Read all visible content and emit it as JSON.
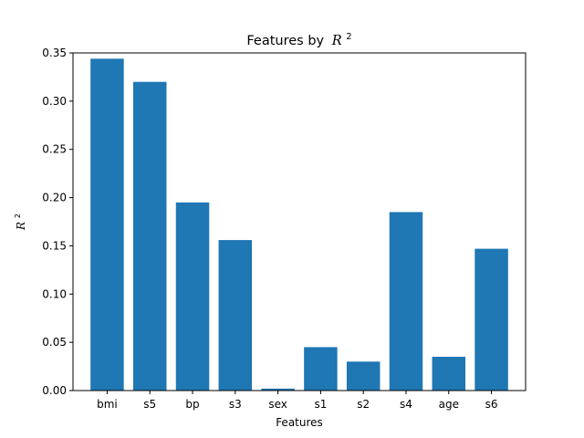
{
  "chart_data": {
    "type": "bar",
    "title": "Features by R²",
    "title_prefix": "Features by",
    "xlabel": "Features",
    "ylabel": "R²",
    "math_symbol": "R",
    "math_exponent": "2",
    "categories": [
      "bmi",
      "s5",
      "bp",
      "s3",
      "sex",
      "s1",
      "s2",
      "s4",
      "age",
      "s6"
    ],
    "values": [
      0.344,
      0.32,
      0.195,
      0.156,
      0.002,
      0.045,
      0.03,
      0.185,
      0.035,
      0.147
    ],
    "ylim": [
      0,
      0.35
    ],
    "yticks": [
      0.0,
      0.05,
      0.1,
      0.15,
      0.2,
      0.25,
      0.3,
      0.35
    ],
    "ytick_labels": [
      "0.00",
      "0.05",
      "0.10",
      "0.15",
      "0.20",
      "0.25",
      "0.30",
      "0.35"
    ],
    "bar_color": "#1f77b4",
    "grid": false
  }
}
